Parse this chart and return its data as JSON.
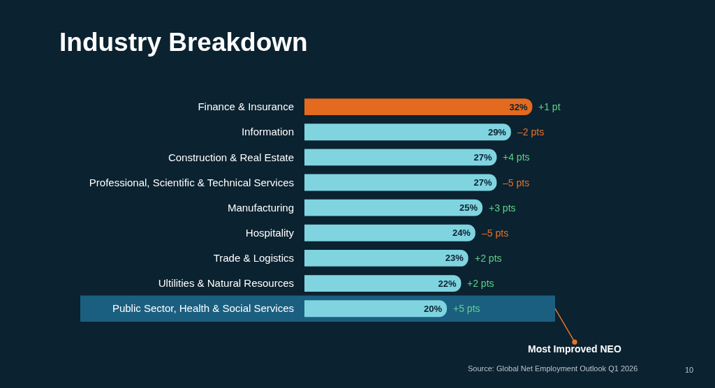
{
  "chart_data": {
    "type": "bar",
    "orientation": "horizontal",
    "title": "Industry Breakdown",
    "categories": [
      "Finance & Insurance",
      "Information",
      "Construction & Real Estate",
      "Professional, Scientific & Technical Services",
      "Manufacturing",
      "Hospitality",
      "Trade & Logistics",
      "Ultilities & Natural Resources",
      "Public Sector, Health & Social Services"
    ],
    "values": [
      32,
      29,
      27,
      27,
      25,
      24,
      23,
      22,
      20
    ],
    "value_labels": [
      "32%",
      "29%",
      "27%",
      "27%",
      "25%",
      "24%",
      "23%",
      "22%",
      "20%"
    ],
    "colors": [
      "#e36a1e",
      "#7fd4e0",
      "#7fd4e0",
      "#7fd4e0",
      "#7fd4e0",
      "#7fd4e0",
      "#7fd4e0",
      "#7fd4e0",
      "#7fd4e0"
    ],
    "tick_labels": "y",
    "grid": false,
    "legend": false,
    "bands": [
      {
        "axis": "y",
        "from": "Public Sector, Health & Social Services",
        "to": "Public Sector, Health & Social Services",
        "label": "Most Improved NEO",
        "color": "#1b5f80"
      }
    ],
    "annotations": [
      {
        "text": "+1 pt",
        "x": 32,
        "y": "Finance & Insurance"
      },
      {
        "text": "–2 pts",
        "x": 29,
        "y": "Information"
      },
      {
        "text": "+4 pts",
        "x": 27,
        "y": "Construction & Real Estate"
      },
      {
        "text": "–5 pts",
        "x": 27,
        "y": "Professional, Scientific & Technical Services"
      },
      {
        "text": "+3 pts",
        "x": 25,
        "y": "Manufacturing"
      },
      {
        "text": "–5 pts",
        "x": 24,
        "y": "Hospitality"
      },
      {
        "text": "+2 pts",
        "x": 23,
        "y": "Trade & Logistics"
      },
      {
        "text": "+2 pts",
        "x": 22,
        "y": "Ultilities & Natural Resources"
      },
      {
        "text": "+5 pts",
        "x": 20,
        "y": "Public Sector, Health & Social Services"
      },
      "Source: Global Net Employment Outlook Q1 2026",
      "10"
    ]
  }
}
